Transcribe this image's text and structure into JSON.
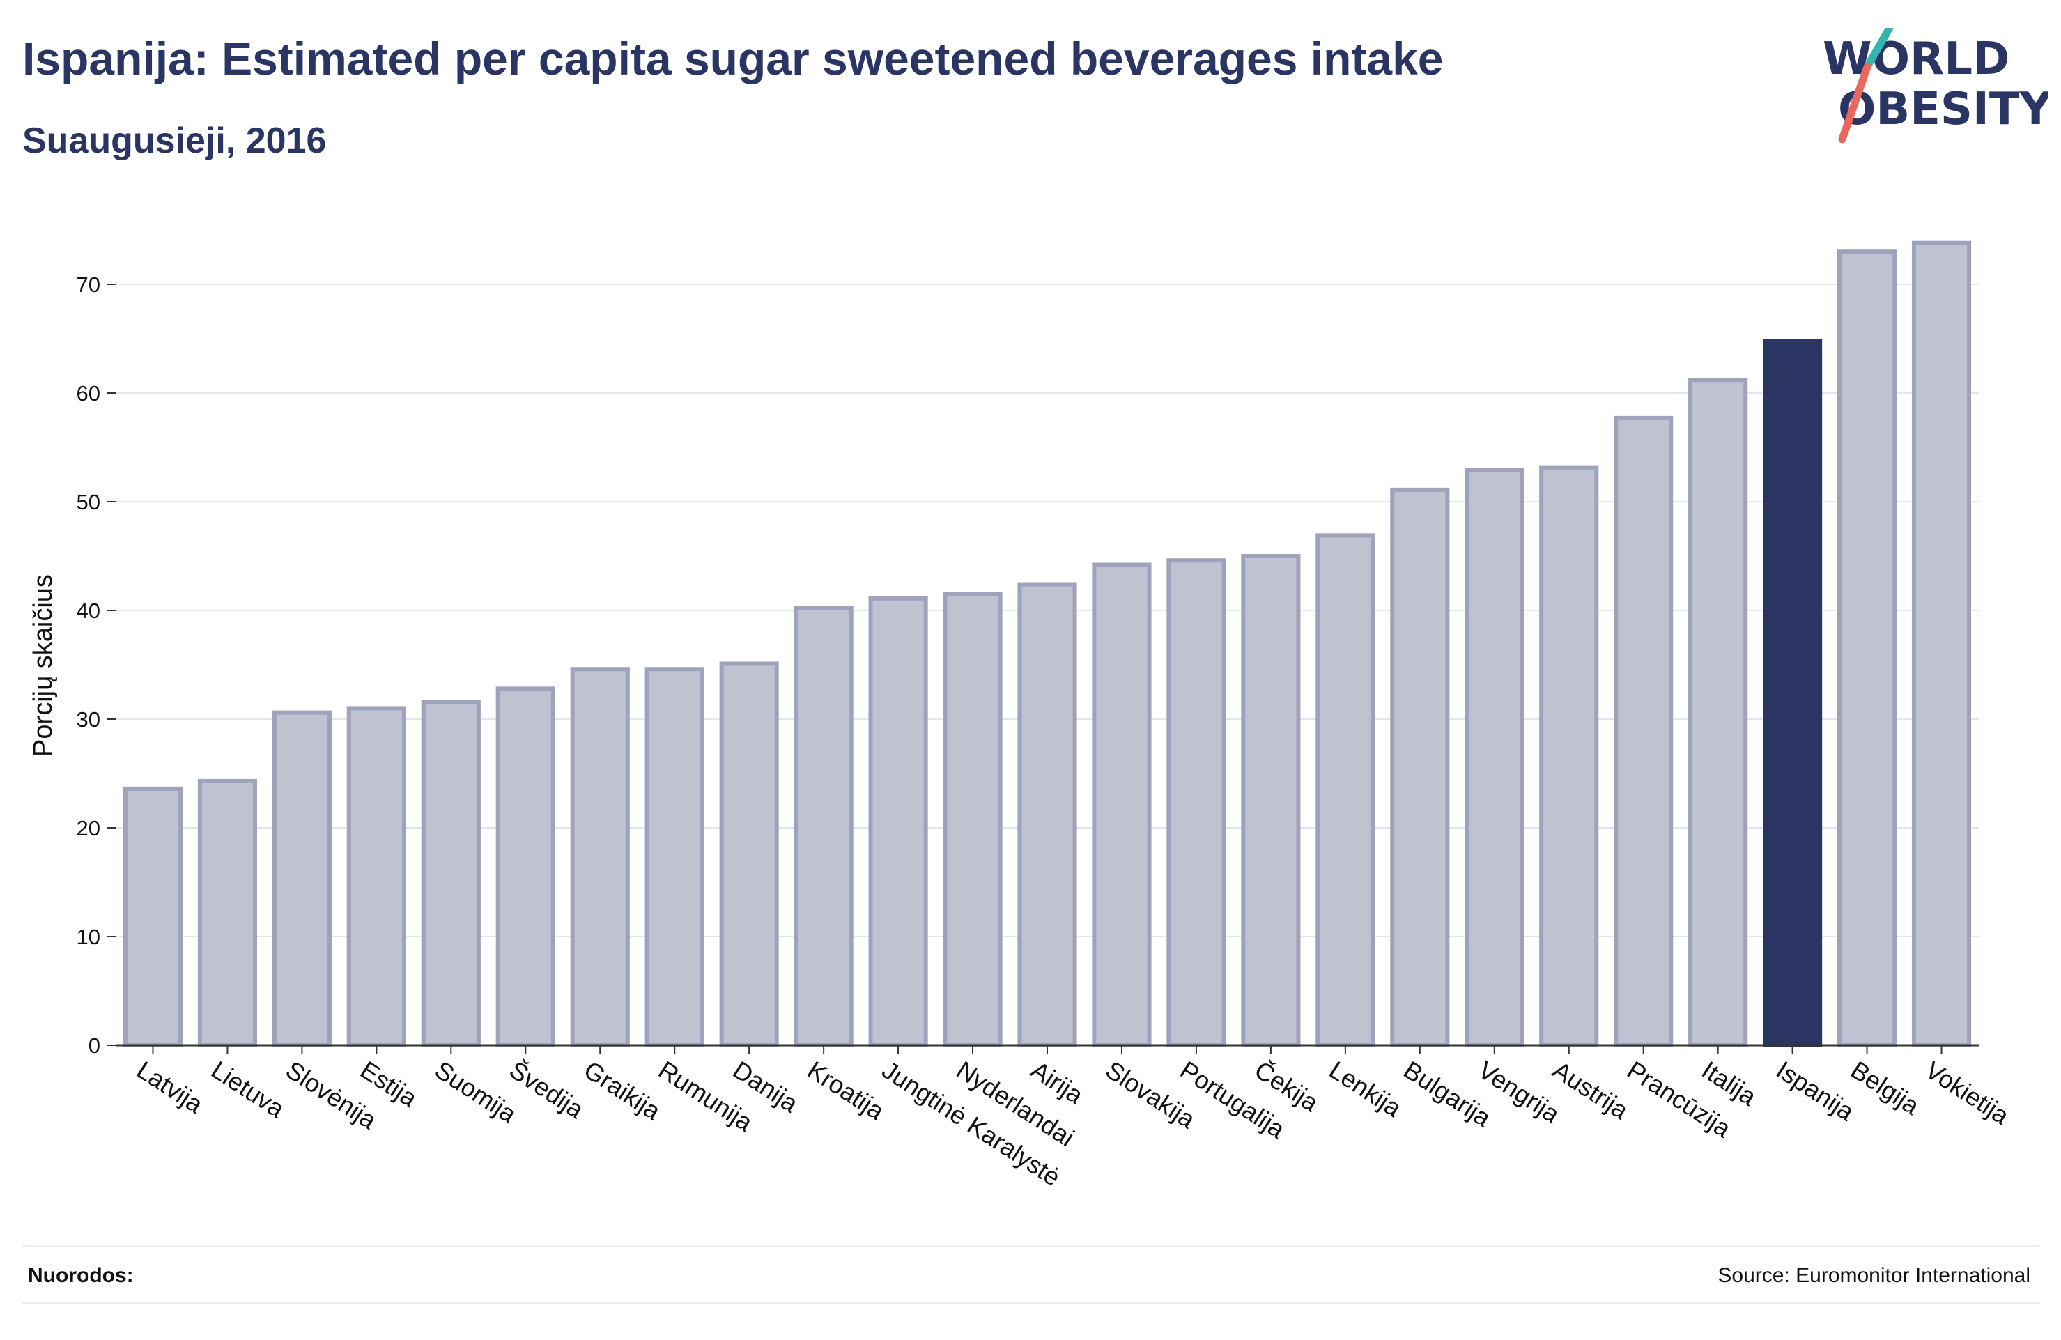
{
  "title": "Ispanija: Estimated per capita sugar sweetened beverages intake",
  "subtitle": "Suaugusieji, 2016",
  "logo": {
    "line1": "WORLD",
    "line2": "OBESITY"
  },
  "footer": {
    "notes_label": "Nuorodos:",
    "source": "Source: Euromonitor International"
  },
  "colors": {
    "title": "#2b3563",
    "bar_fill": "#bfc2d0",
    "bar_stroke": "#9ea3bb",
    "highlight": "#2b3563",
    "logo_teal": "#34b5b0",
    "logo_coral": "#e8685e"
  },
  "chart_data": {
    "type": "bar",
    "ylabel": "Porcijų skaičius",
    "xlabel": "",
    "ylim": [
      0,
      75
    ],
    "yticks": [
      0,
      10,
      20,
      30,
      40,
      50,
      60,
      70
    ],
    "grid": true,
    "highlight": "Ispanija",
    "categories": [
      "Latvija",
      "Lietuva",
      "Slovėnija",
      "Estija",
      "Suomija",
      "Švedija",
      "Graikija",
      "Rumunija",
      "Danija",
      "Kroatija",
      "Jungtinė Karalystė",
      "Nyderlandai",
      "Airija",
      "Slovakija",
      "Portugalija",
      "Čekija",
      "Lenkija",
      "Bulgarija",
      "Vengrija",
      "Austrija",
      "Prancūzija",
      "Italija",
      "Ispanija",
      "Belgija",
      "Vokietija"
    ],
    "values": [
      23.6,
      24.3,
      30.6,
      31.0,
      31.6,
      32.8,
      34.6,
      34.6,
      35.1,
      40.2,
      41.1,
      41.5,
      42.4,
      44.2,
      44.6,
      45.0,
      46.9,
      51.1,
      52.9,
      53.1,
      57.7,
      61.2,
      64.8,
      73.0,
      73.8
    ]
  }
}
